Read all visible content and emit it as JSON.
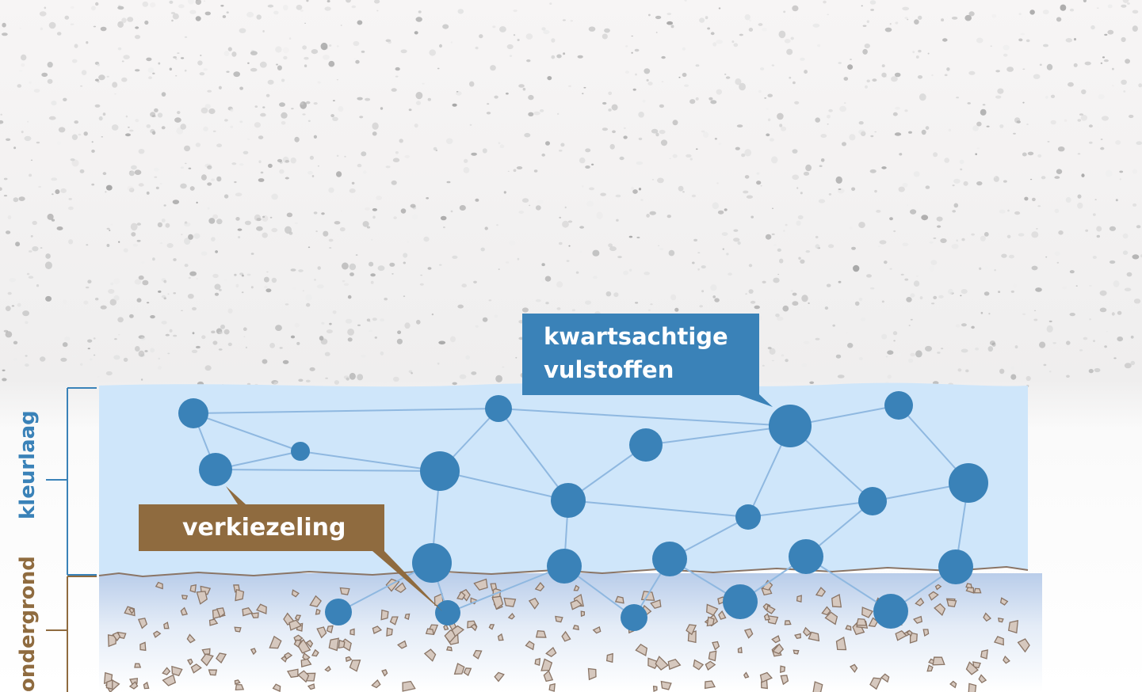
{
  "labels": {
    "quartz_line1": "kwartsachtige",
    "quartz_line2": "vulstoffen",
    "silicification": "verkiezeling",
    "color_layer": "kleurlaag",
    "substrate": "ondergrond"
  },
  "colors": {
    "color_layer_fill": "#cfe6fa",
    "particle": "#3a82b8",
    "network_line": "#8fb8e0",
    "silicification_box": "#8f6b3f",
    "substrate_stone": "#c9b9ae"
  }
}
